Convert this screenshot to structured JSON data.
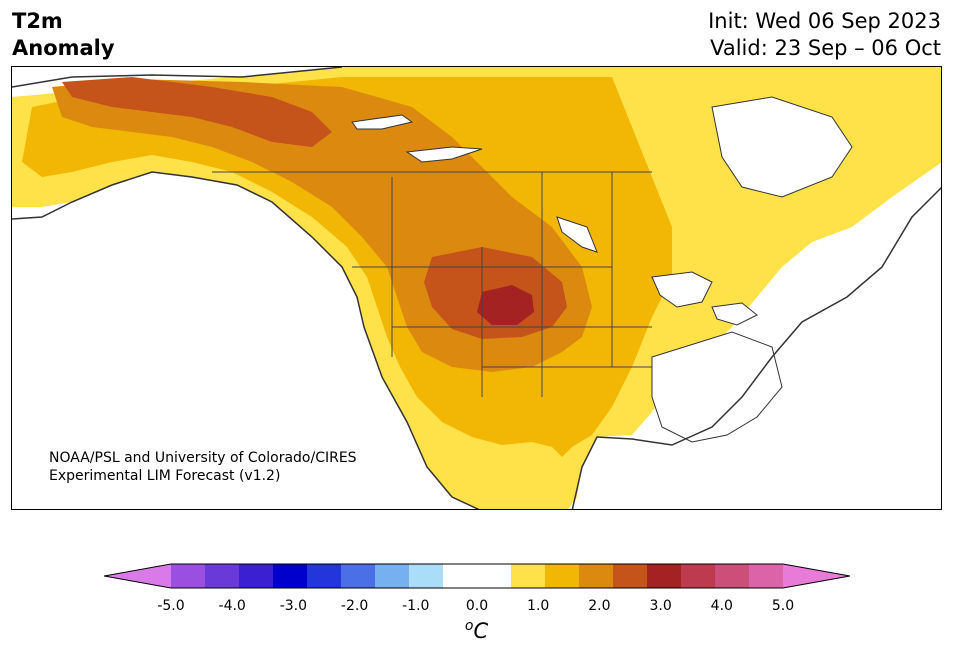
{
  "title": {
    "left_line1": "T2m",
    "left_line2": "Anomaly",
    "right_line1": "Init: Wed 06 Sep 2023",
    "right_line2": "Valid: 23 Sep – 06 Oct"
  },
  "credit": {
    "line1": "NOAA/PSL and University of Colorado/CIRES",
    "line2": "Experimental LIM Forecast (v1.2)"
  },
  "colorbar": {
    "colors": [
      "#d97ae8",
      "#9b4fe0",
      "#6a3ad9",
      "#3a20d0",
      "#0000cc",
      "#2236dc",
      "#4a6fe6",
      "#77b0f0",
      "#a9ddf8",
      "#ffffff",
      "#ffffff",
      "#ffe14a",
      "#f2b705",
      "#dc8a0f",
      "#c4541a",
      "#a52222",
      "#be3a4f",
      "#cc4f7a",
      "#db64a8",
      "#e87ad8"
    ],
    "tick_labels": [
      "-5.0",
      "-4.0",
      "-3.0",
      "-2.0",
      "-1.0",
      "0.0",
      "1.0",
      "2.0",
      "3.0",
      "4.0",
      "5.0"
    ],
    "unit_sup": "o",
    "unit_text": "C"
  },
  "map": {
    "anomaly_colors": {
      "land": "#ffffff",
      "ocean": "#ffffff",
      "level_05": "#ffe14a",
      "level_10": "#f2b705",
      "level_15": "#dc8a0f",
      "level_20": "#c4541a",
      "level_25": "#a52222",
      "coast": "#333333"
    },
    "region": "North America"
  }
}
